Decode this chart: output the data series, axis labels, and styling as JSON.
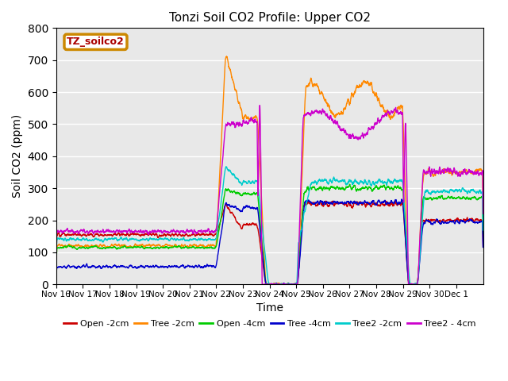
{
  "title": "Tonzi Soil CO2 Profile: Upper CO2",
  "xlabel": "Time",
  "ylabel": "Soil CO2 (ppm)",
  "ylim": [
    0,
    800
  ],
  "yticks": [
    0,
    100,
    200,
    300,
    400,
    500,
    600,
    700,
    800
  ],
  "legend_label": "TZ_soilco2",
  "legend_text_color": "#aa0000",
  "legend_box_color": "#cc8800",
  "series_colors": {
    "Open -2cm": "#cc0000",
    "Tree -2cm": "#ff8800",
    "Open -4cm": "#00cc00",
    "Tree -4cm": "#0000cc",
    "Tree2 -2cm": "#00cccc",
    "Tree2 - 4cm": "#cc00cc"
  },
  "background_color": "#e8e8e8",
  "grid_color": "#ffffff",
  "x_tick_labels": [
    "Nov 16",
    "Nov 17",
    "Nov 18",
    "Nov 19",
    "Nov 20",
    "Nov 21",
    "Nov 22",
    "Nov 23",
    "Nov 24",
    "Nov 25",
    "Nov 26",
    "Nov 27",
    "Nov 28",
    "Nov 29",
    "Nov 30",
    "Dec 1"
  ]
}
